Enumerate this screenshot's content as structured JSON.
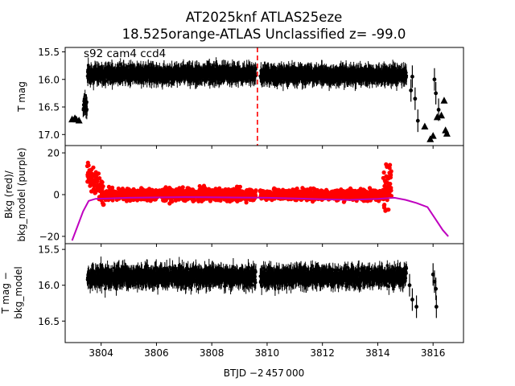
{
  "figure": {
    "title_line1": "AT2025knf  ATLAS25eze",
    "title_line2": "18.525orange-ATLAS Unclassified z= -99.0",
    "xlabel": "BTJD −2 457 000",
    "annotation": "s92 cam4 ccd4"
  },
  "chart_data": [
    {
      "type": "scatter",
      "panel": "top",
      "ylabel": "T mag",
      "xlim": [
        3802.7,
        3817.1
      ],
      "ylim": [
        17.2,
        15.42
      ],
      "y_inverted": true,
      "x_ticks": [
        3804,
        3806,
        3808,
        3810,
        3812,
        3814,
        3816
      ],
      "y_ticks": [
        "15.5",
        "16.0",
        "16.5",
        "17.0"
      ],
      "y_tick_values": [
        15.5,
        16.0,
        16.5,
        17.0
      ],
      "marker_color": "#000000",
      "vline": {
        "x": 3809.65,
        "color": "#ff0000",
        "style": "dashed"
      },
      "segments": [
        {
          "x_start": 3803.35,
          "x_end": 3803.5,
          "center": 16.45,
          "spread": 0.25
        },
        {
          "x_start": 3803.5,
          "x_end": 3809.6,
          "center": 15.9,
          "spread": 0.15
        },
        {
          "x_start": 3809.75,
          "x_end": 3815.05,
          "center": 15.92,
          "spread": 0.14
        }
      ],
      "triangles": [
        [
          3802.95,
          16.72
        ],
        [
          3803.05,
          16.7
        ],
        [
          3803.1,
          16.72
        ],
        [
          3803.2,
          16.74
        ],
        [
          3815.7,
          16.85
        ],
        [
          3815.9,
          17.08
        ],
        [
          3816.0,
          17.02
        ],
        [
          3816.15,
          16.68
        ],
        [
          3816.3,
          16.65
        ],
        [
          3816.4,
          16.38
        ],
        [
          3816.45,
          16.92
        ],
        [
          3816.5,
          16.98
        ]
      ],
      "extra_points": [
        [
          3815.2,
          16.2
        ],
        [
          3815.25,
          15.95
        ],
        [
          3815.35,
          16.35
        ],
        [
          3815.45,
          16.75
        ],
        [
          3816.05,
          16.0
        ],
        [
          3816.1,
          16.25
        ],
        [
          3816.2,
          16.55
        ]
      ]
    },
    {
      "type": "scatter",
      "panel": "middle",
      "ylabel_line1": "Bkg (red)/",
      "ylabel_line2": "bkg_model (purple)",
      "xlim": [
        3802.7,
        3817.1
      ],
      "ylim": [
        -23.5,
        23.5
      ],
      "x_ticks": [
        3804,
        3806,
        3808,
        3810,
        3812,
        3814,
        3816
      ],
      "y_ticks": [
        "20",
        "0",
        "−20"
      ],
      "y_tick_values": [
        20,
        0,
        -20
      ],
      "series": [
        {
          "name": "Bkg",
          "color": "#ff0000"
        },
        {
          "name": "bkg_model",
          "color": "#bf00bf"
        }
      ],
      "model_curve": [
        [
          3802.95,
          -22
        ],
        [
          3803.15,
          -15
        ],
        [
          3803.35,
          -8
        ],
        [
          3803.55,
          -3
        ],
        [
          3803.8,
          -2
        ],
        [
          3805,
          -1.5
        ],
        [
          3807,
          -1.2
        ],
        [
          3809,
          -1.4
        ],
        [
          3810,
          -1.5
        ],
        [
          3811,
          -1.8
        ],
        [
          3812,
          -2.2
        ],
        [
          3813,
          -2.5
        ],
        [
          3814,
          -2.0
        ],
        [
          3814.6,
          -1.5
        ],
        [
          3815.0,
          -2.5
        ],
        [
          3815.4,
          -4
        ],
        [
          3815.8,
          -6
        ],
        [
          3816.1,
          -12
        ],
        [
          3816.35,
          -17
        ],
        [
          3816.55,
          -20
        ]
      ],
      "bkg_segments": [
        {
          "x_start": 3803.5,
          "x_end": 3809.6,
          "center": 0,
          "spread": 3.5
        },
        {
          "x_start": 3809.75,
          "x_end": 3814.5,
          "center": 0,
          "spread": 3.2
        }
      ]
    },
    {
      "type": "scatter",
      "panel": "bottom",
      "ylabel_line1": "T mag −",
      "ylabel_line2": "bkg_model",
      "xlim": [
        3802.7,
        3817.1
      ],
      "ylim": [
        16.8,
        15.42
      ],
      "y_inverted": true,
      "x_ticks": [
        3804,
        3806,
        3808,
        3810,
        3812,
        3814,
        3816
      ],
      "x_tick_labels": [
        "3804",
        "3806",
        "3808",
        "3810",
        "3812",
        "3814",
        "3816"
      ],
      "y_ticks": [
        "15.5",
        "16.0",
        "16.5"
      ],
      "y_tick_values": [
        15.5,
        16.0,
        16.5
      ],
      "marker_color": "#000000",
      "segments": [
        {
          "x_start": 3803.5,
          "x_end": 3809.6,
          "center": 15.88,
          "spread": 0.15
        },
        {
          "x_start": 3809.75,
          "x_end": 3815.05,
          "center": 15.88,
          "spread": 0.14
        }
      ],
      "extra_points": [
        [
          3815.15,
          16.0
        ],
        [
          3815.25,
          16.2
        ],
        [
          3815.4,
          16.3
        ],
        [
          3816.05,
          15.95
        ],
        [
          3816.1,
          16.05
        ],
        [
          3816.12,
          16.3
        ],
        [
          3816.0,
          15.85
        ]
      ]
    }
  ]
}
